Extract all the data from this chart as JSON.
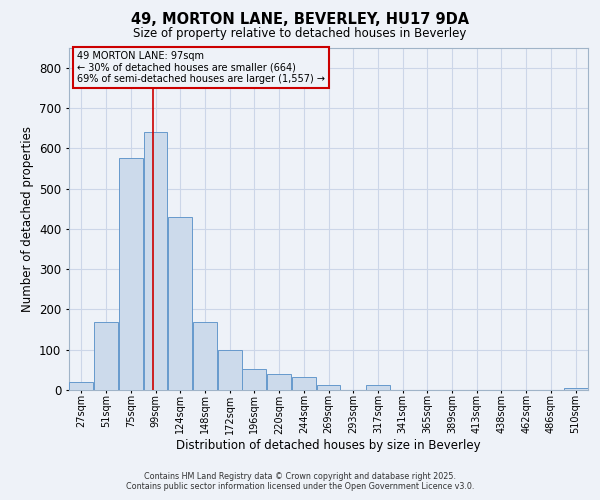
{
  "title": "49, MORTON LANE, BEVERLEY, HU17 9DA",
  "subtitle": "Size of property relative to detached houses in Beverley",
  "xlabel": "Distribution of detached houses by size in Beverley",
  "ylabel": "Number of detached properties",
  "bar_color": "#ccdaeb",
  "bar_edge_color": "#6699cc",
  "bin_labels": [
    "27sqm",
    "51sqm",
    "75sqm",
    "99sqm",
    "124sqm",
    "148sqm",
    "172sqm",
    "196sqm",
    "220sqm",
    "244sqm",
    "269sqm",
    "293sqm",
    "317sqm",
    "341sqm",
    "365sqm",
    "389sqm",
    "413sqm",
    "438sqm",
    "462sqm",
    "486sqm",
    "510sqm"
  ],
  "bar_heights": [
    20,
    168,
    575,
    640,
    430,
    170,
    100,
    52,
    40,
    33,
    13,
    0,
    12,
    0,
    0,
    0,
    0,
    0,
    0,
    0,
    5
  ],
  "ylim": [
    0,
    850
  ],
  "yticks": [
    0,
    100,
    200,
    300,
    400,
    500,
    600,
    700,
    800
  ],
  "property_size": 97,
  "property_label": "49 MORTON LANE: 97sqm",
  "annotation_line1": "← 30% of detached houses are smaller (664)",
  "annotation_line2": "69% of semi-detached houses are larger (1,557) →",
  "red_line_color": "#cc0000",
  "annotation_box_edge_color": "#cc0000",
  "grid_color": "#ccd6e8",
  "background_color": "#eef2f8",
  "footer1": "Contains HM Land Registry data © Crown copyright and database right 2025.",
  "footer2": "Contains public sector information licensed under the Open Government Licence v3.0.",
  "bin_edges": [
    15,
    39,
    63,
    87,
    111,
    135,
    159,
    183,
    207,
    231,
    255,
    279,
    303,
    327,
    351,
    375,
    399,
    423,
    447,
    471,
    495,
    519
  ]
}
